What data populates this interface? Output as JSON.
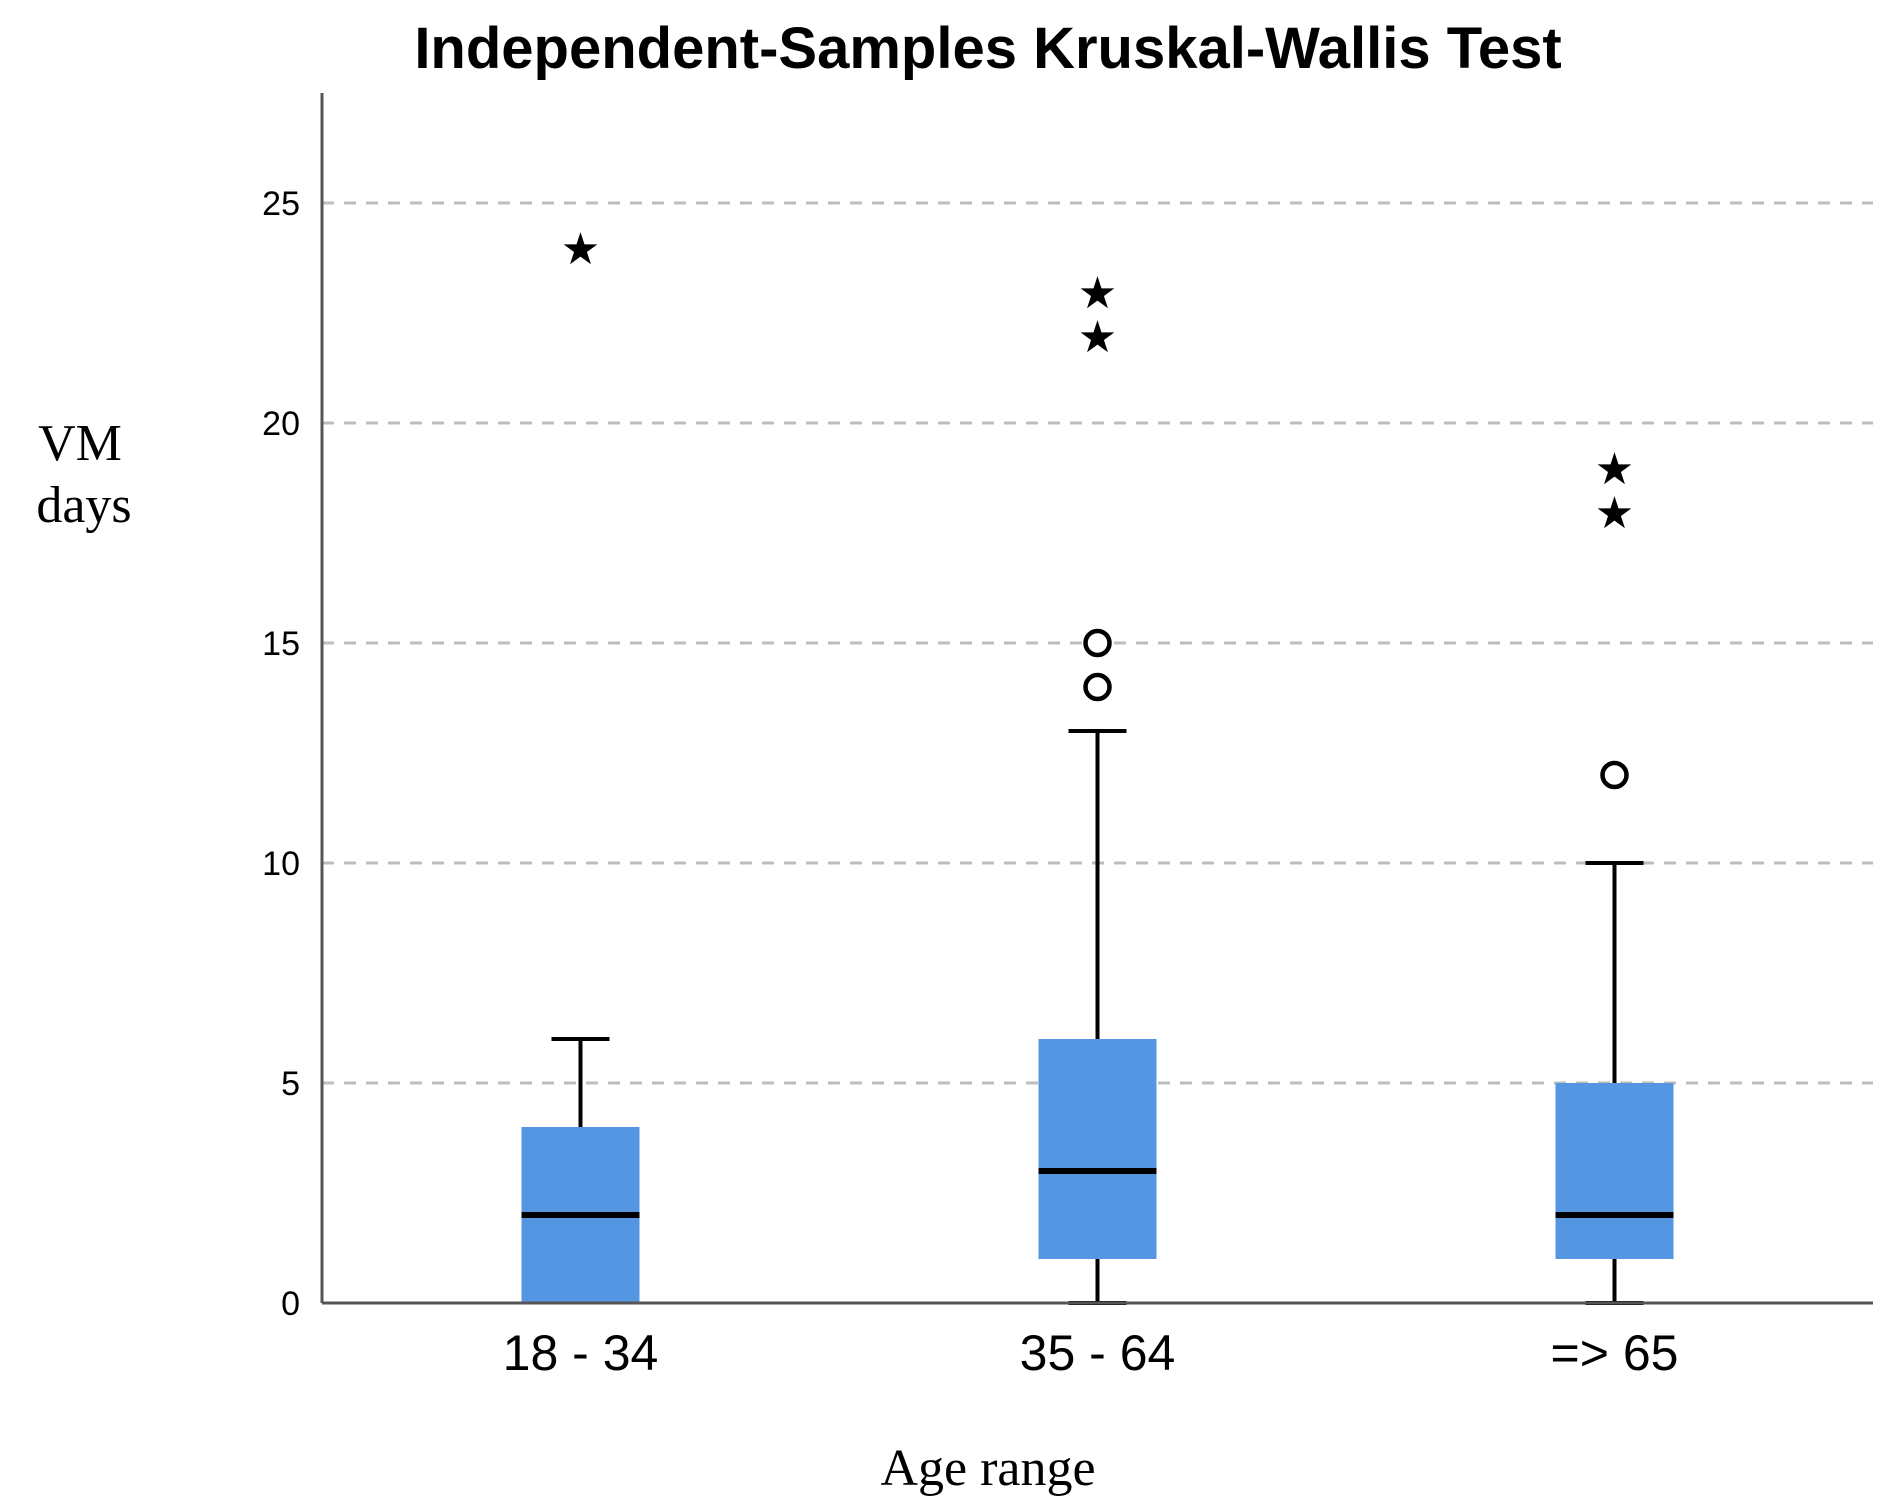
{
  "chart_data": {
    "type": "boxplot",
    "title": "Independent-Samples Kruskal-Wallis Test",
    "ylabel_lines": [
      "VM",
      "days"
    ],
    "xlabel": "Age range",
    "ylim": [
      0,
      27.5
    ],
    "yticks": [
      0,
      5,
      10,
      15,
      20,
      25
    ],
    "grid": true,
    "box_color": "#5596e3",
    "categories": [
      "18 - 34",
      "35 - 64",
      "=> 65"
    ],
    "groups": [
      {
        "category": "18 - 34",
        "whisker_low": 0,
        "q1": 0,
        "median": 2,
        "q3": 4,
        "whisker_high": 6,
        "outliers": [],
        "extremes": [
          24
        ]
      },
      {
        "category": "35 - 64",
        "whisker_low": 0,
        "q1": 1,
        "median": 3,
        "q3": 6,
        "whisker_high": 13,
        "outliers": [
          14,
          15
        ],
        "extremes": [
          22,
          23
        ]
      },
      {
        "category": "=> 65",
        "whisker_low": 0,
        "q1": 1,
        "median": 2,
        "q3": 5,
        "whisker_high": 10,
        "outliers": [
          12
        ],
        "extremes": [
          18,
          19
        ]
      }
    ]
  }
}
